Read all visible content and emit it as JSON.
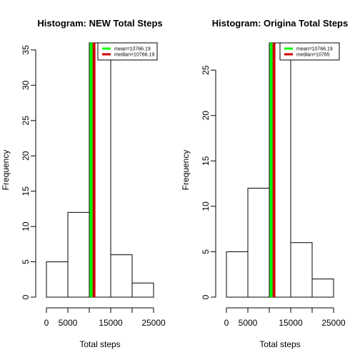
{
  "chart_data": [
    {
      "type": "bar",
      "title": "Histogram: NEW Total Steps",
      "xlabel": "Total steps",
      "ylabel": "Frequency",
      "bin_edges": [
        0,
        5000,
        10000,
        15000,
        20000,
        25000
      ],
      "values": [
        5,
        12,
        36,
        6,
        2
      ],
      "xlim": [
        0,
        25000
      ],
      "ylim": [
        0,
        36
      ],
      "x_ticks": [
        0,
        5000,
        15000,
        25000
      ],
      "x_tick_labels": [
        "0",
        "5000",
        "15000",
        "25000"
      ],
      "y_ticks": [
        0,
        5,
        10,
        15,
        20,
        25,
        30,
        35
      ],
      "grid": false,
      "legend_position": "top-right",
      "lines": [
        {
          "label": "mean=10766.19",
          "value": 10766.19,
          "color": "#00ff00"
        },
        {
          "label": "median=10766.19",
          "value": 10766.19,
          "color": "#cc0000"
        }
      ]
    },
    {
      "type": "bar",
      "title": "Histogram: Origina Total Steps",
      "xlabel": "Total steps",
      "ylabel": "Frequency",
      "bin_edges": [
        0,
        5000,
        10000,
        15000,
        20000,
        25000
      ],
      "values": [
        5,
        12,
        28,
        6,
        2
      ],
      "xlim": [
        0,
        25000
      ],
      "ylim": [
        0,
        28
      ],
      "x_ticks": [
        0,
        5000,
        15000,
        25000
      ],
      "x_tick_labels": [
        "0",
        "5000",
        "15000",
        "25000"
      ],
      "y_ticks": [
        0,
        5,
        10,
        15,
        20,
        25
      ],
      "grid": false,
      "legend_position": "top-right",
      "lines": [
        {
          "label": "mean=10766.19",
          "value": 10766.19,
          "color": "#00ff00"
        },
        {
          "label": "median=10765",
          "value": 10765,
          "color": "#cc0000"
        }
      ]
    }
  ]
}
